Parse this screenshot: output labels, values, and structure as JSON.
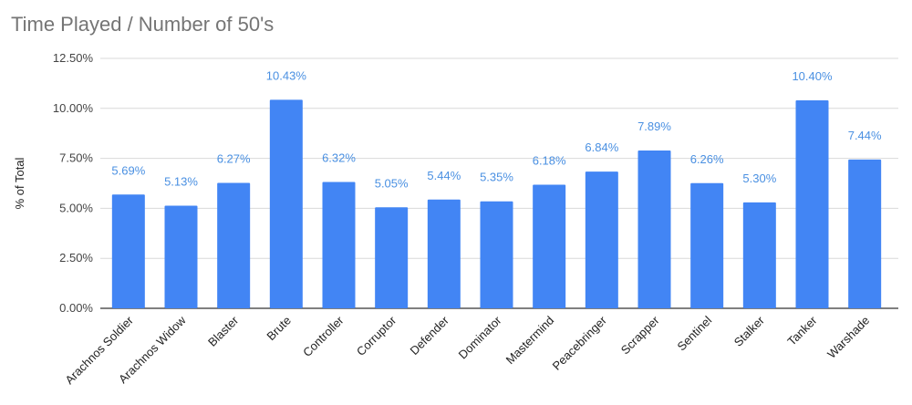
{
  "chart_data": {
    "type": "bar",
    "title": "Time Played / Number of 50's",
    "xlabel": "",
    "ylabel": "% of Total",
    "ylim": [
      0,
      12.5
    ],
    "y_ticks": [
      "0.00%",
      "2.50%",
      "5.00%",
      "7.50%",
      "10.00%",
      "12.50%"
    ],
    "y_tick_values": [
      0,
      2.5,
      5,
      7.5,
      10,
      12.5
    ],
    "grid": true,
    "legend": "none",
    "bar_color": "#4285f4",
    "label_color": "#4a90e2",
    "categories": [
      "Arachnos Soldier",
      "Arachnos Widow",
      "Blaster",
      "Brute",
      "Controller",
      "Corruptor",
      "Defender",
      "Dominator",
      "Mastermind",
      "Peacebringer",
      "Scrapper",
      "Sentinel",
      "Stalker",
      "Tanker",
      "Warshade"
    ],
    "values": [
      5.69,
      5.13,
      6.27,
      10.43,
      6.32,
      5.05,
      5.44,
      5.35,
      6.18,
      6.84,
      7.89,
      6.26,
      5.3,
      10.4,
      7.44
    ],
    "data_labels": [
      "5.69%",
      "5.13%",
      "6.27%",
      "10.43%",
      "6.32%",
      "5.05%",
      "5.44%",
      "5.35%",
      "6.18%",
      "6.84%",
      "7.89%",
      "6.26%",
      "5.30%",
      "10.40%",
      "7.44%"
    ]
  }
}
